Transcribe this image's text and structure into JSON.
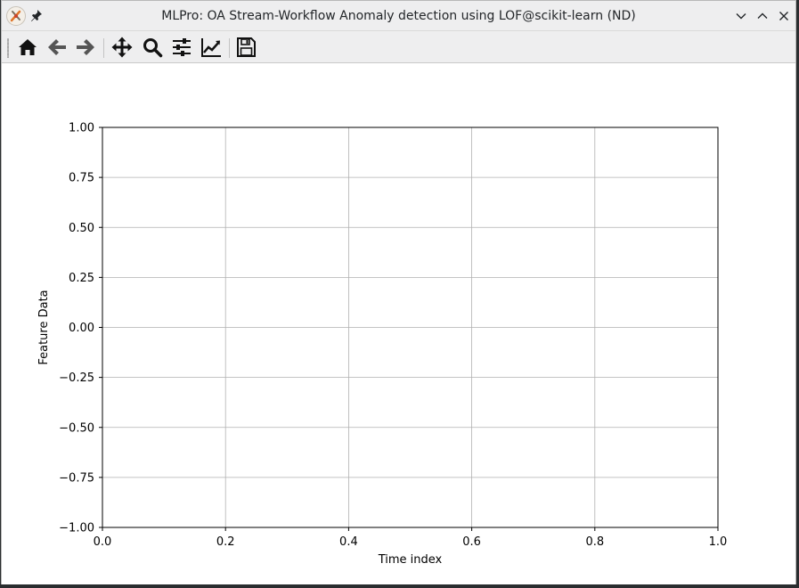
{
  "window": {
    "title": "MLPro: OA Stream-Workflow Anomaly detection using LOF@scikit-learn (ND)"
  },
  "toolbar": {
    "buttons": [
      "home-icon",
      "back-icon",
      "forward-icon",
      "pan-icon",
      "zoom-icon",
      "configure-subplots-icon",
      "edit-axis-icon",
      "save-icon"
    ]
  },
  "chart_data": {
    "type": "line",
    "xlabel": "Time index",
    "ylabel": "Feature Data",
    "xlim": [
      0.0,
      1.0
    ],
    "ylim": [
      -1.0,
      1.0
    ],
    "x_ticks": [
      "0.0",
      "0.2",
      "0.4",
      "0.6",
      "0.8",
      "1.0"
    ],
    "y_ticks": [
      "1.00",
      "0.75",
      "0.50",
      "0.25",
      "0.00",
      "−0.25",
      "−0.50",
      "−0.75",
      "−1.00"
    ],
    "grid": true,
    "series": []
  }
}
